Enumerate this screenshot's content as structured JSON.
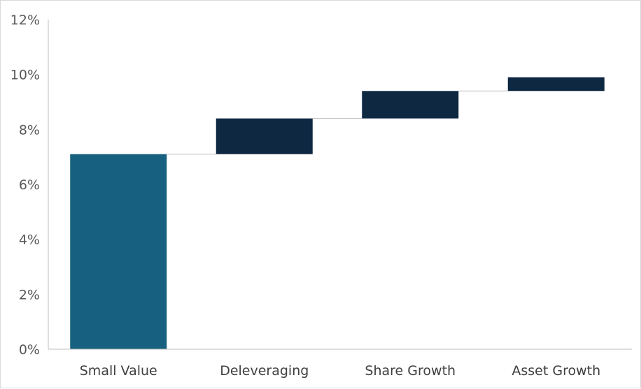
{
  "chart_data": {
    "type": "bar",
    "subtype": "waterfall",
    "categories": [
      "Small Value",
      "Deleveraging",
      "Share Growth",
      "Asset Growth"
    ],
    "bars": [
      {
        "category": "Small Value",
        "base": 0,
        "value": 7.1,
        "color": "#17607f"
      },
      {
        "category": "Deleveraging",
        "base": 7.1,
        "value": 1.3,
        "color": "#0e2842"
      },
      {
        "category": "Share Growth",
        "base": 8.4,
        "value": 1.0,
        "color": "#0e2842"
      },
      {
        "category": "Asset Growth",
        "base": 9.4,
        "value": 0.5,
        "color": "#0e2842"
      }
    ],
    "yticks": [
      "0%",
      "2%",
      "4%",
      "6%",
      "8%",
      "10%",
      "12%"
    ],
    "ytick_values": [
      0,
      2,
      4,
      6,
      8,
      10,
      12
    ],
    "ylim": [
      0,
      12
    ],
    "title": "",
    "xlabel": "",
    "ylabel": "",
    "grid": false,
    "legend": "none",
    "connector_color": "#bfbfbf",
    "axis_color": "#bfbfbf"
  }
}
